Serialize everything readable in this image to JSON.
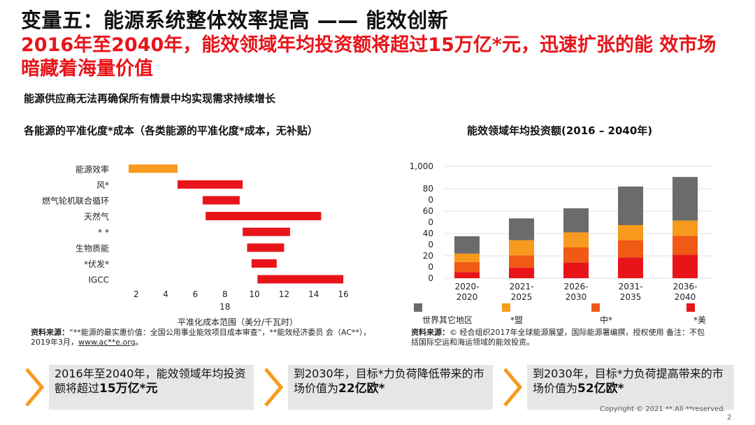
{
  "title": "变量五：能源系统整体效率提高 —— 能效创新",
  "headline": "2016年至2040年，能效领域年均投资额将超过15万亿*元，迅速扩张的能 效市场暗藏着海量价值",
  "subline": "能源供应商无法再确保所有情景中均实现需求持续增长",
  "colors": {
    "red": "#e8141a",
    "orange": "#f79a1e",
    "darkorange": "#f05a14",
    "grey": "#6b6b6b"
  },
  "chart_data": [
    {
      "type": "bar",
      "orientation": "horizontal-range",
      "title": "各能源的平准化度*成本（各类能源的平准化度*成本，无补贴）",
      "xlabel": "平准化成本范围（美分/千瓦时）",
      "categories": [
        "能源效率",
        "风*",
        "燃气轮机联合循环",
        "天然气",
        "*    *",
        "生物质能",
        "*伏发*",
        "IGCC"
      ],
      "ranges": [
        [
          1.5,
          4.8
        ],
        [
          4.8,
          9.2
        ],
        [
          6.5,
          9
        ],
        [
          6.7,
          14.5
        ],
        [
          9.2,
          12.4
        ],
        [
          9.5,
          12
        ],
        [
          9.8,
          11.5
        ],
        [
          10.2,
          16
        ]
      ],
      "bar_colors": [
        "#f79a1e",
        "#e8141a",
        "#e8141a",
        "#e8141a",
        "#e8141a",
        "#e8141a",
        "#e8141a",
        "#e8141a"
      ],
      "x_ticks": [
        "2",
        "4",
        "6",
        "8",
        "10",
        "12",
        "14",
        "16"
      ],
      "x_tick_values": [
        2,
        4,
        6,
        8,
        10,
        12,
        14,
        16
      ],
      "x_extra_label": "18",
      "xlim": [
        0.6,
        17.6
      ]
    },
    {
      "type": "bar",
      "stacked": true,
      "title": "能效领域年均投资额(2016 – 2040年)",
      "categories": [
        "2020-\n2020",
        "2021-\n2025",
        "2026-\n2030",
        "2031-\n2035",
        "2036-\n2040"
      ],
      "y_tick_labels": [
        "1,000",
        "80\n0",
        "60\n0",
        "40\n0",
        "20\n0",
        "0"
      ],
      "y_tick_values": [
        1000,
        800,
        600,
        400,
        200,
        0
      ],
      "ylim": [
        0,
        1000
      ],
      "series": [
        {
          "name": "*美",
          "color": "#e8141a",
          "values": [
            55,
            95,
            140,
            185,
            210
          ]
        },
        {
          "name": "中*",
          "color": "#f05a14",
          "values": [
            90,
            110,
            135,
            155,
            170
          ]
        },
        {
          "name": "*盟",
          "color": "#f79a1e",
          "values": [
            75,
            135,
            135,
            135,
            135
          ]
        },
        {
          "name": "世界其它地区",
          "color": "#6b6b6b",
          "values": [
            155,
            195,
            215,
            345,
            390
          ]
        }
      ],
      "legend": [
        "世界其它地区",
        "*盟",
        "中*",
        "*美"
      ]
    }
  ],
  "left_source": {
    "label": "资料来源：",
    "text": "“**能源的最实惠价值：全国公用事业能效项目成本审查”，**能效经济委员 会（AC**），2019年3月，",
    "link": "www.ac**e.org",
    "end": "。"
  },
  "right_source": {
    "label": "资料来源：",
    "text": "© 经合组织2017年全球能源展望，国际能源署编撰，授权使用 备注：不包括国际空运和海运领域的能效投资。"
  },
  "callouts": [
    {
      "text": "2016年至2040年，能效领域年均投资额将超过",
      "bold": "15万亿*元",
      "end": ""
    },
    {
      "text": "到2030年，目标*力负荷降低带来的市场价值为",
      "bold": "22亿欧*",
      "end": ""
    },
    {
      "text": "到2030年，目标*力负荷提高带来的市场价值为",
      "bold": "52亿欧*",
      "end": ""
    }
  ],
  "copyright": "Copyright © 2021 **.All **reserved.",
  "page_number": "2"
}
